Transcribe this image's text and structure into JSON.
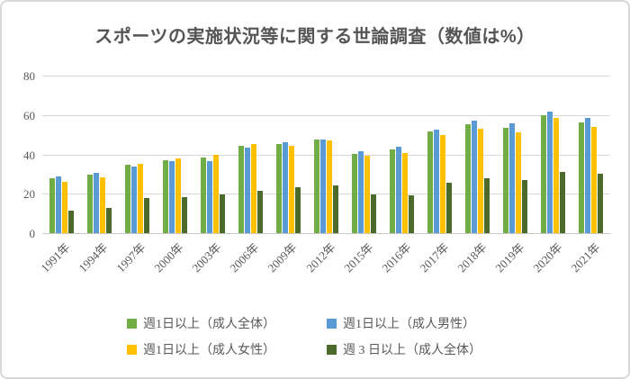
{
  "title": "スポーツの実施状況等に関する世論調査（数値は%）",
  "chart_data": {
    "type": "bar",
    "title": "スポーツの実施状況等に関する世論調査（数値は%）",
    "categories": [
      "1991年",
      "1994年",
      "1997年",
      "2000年",
      "2003年",
      "2006年",
      "2009年",
      "2012年",
      "2015年",
      "2016年",
      "2017年",
      "2018年",
      "2019年",
      "2020年",
      "2021年"
    ],
    "series": [
      {
        "name": "週1日以上（成人全体）",
        "color": "#70AD47",
        "values": [
          27.8,
          29.9,
          34.8,
          37.2,
          38.5,
          44.4,
          45.3,
          47.5,
          40.4,
          42.5,
          51.5,
          55.1,
          53.6,
          59.9,
          56.4
        ]
      },
      {
        "name": "週1日以上（成人男性）",
        "color": "#5B9BD5",
        "values": [
          28.7,
          30.5,
          34.0,
          36.5,
          36.7,
          43.5,
          46.2,
          47.7,
          41.7,
          44.0,
          52.5,
          57.3,
          55.8,
          61.8,
          58.5
        ]
      },
      {
        "name": "週1日以上（成人女性）",
        "color": "#FFC000",
        "values": [
          26.2,
          28.5,
          35.2,
          38.0,
          40.0,
          45.2,
          44.2,
          47.0,
          39.2,
          40.6,
          49.8,
          52.9,
          51.0,
          58.3,
          54.1
        ]
      },
      {
        "name": "週 3 日以上（成人全体）",
        "color": "#4C6B2B",
        "values": [
          11.5,
          12.6,
          17.9,
          18.2,
          19.6,
          21.4,
          23.5,
          24.4,
          19.6,
          19.0,
          25.5,
          27.8,
          27.0,
          30.9,
          30.4
        ]
      }
    ],
    "ylim": [
      0,
      80
    ],
    "yticks": [
      0,
      20,
      40,
      60,
      80
    ],
    "grid": true,
    "legend_position": "bottom",
    "legend_rows": [
      [
        0,
        1
      ],
      [
        2,
        3
      ]
    ]
  },
  "colors": {
    "gridline": "#d9d9d9",
    "axis": "#c9c9c9",
    "text": "#595959"
  }
}
